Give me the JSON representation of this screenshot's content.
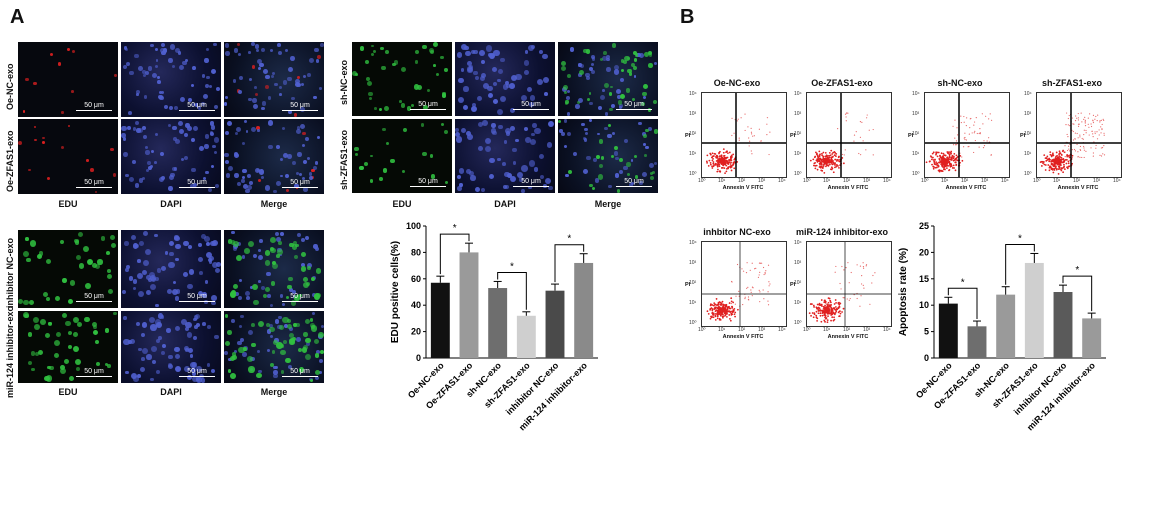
{
  "panel_labels": {
    "a": "A",
    "b": "B"
  },
  "micro": {
    "scale_bar": "50 μm",
    "columns": [
      "EDU",
      "DAPI",
      "Merge"
    ],
    "group1_rows": [
      "Oe-NC-exo",
      "Oe-ZFAS1-exo"
    ],
    "group2_rows": [
      "sh-NC-exo",
      "sh-ZFAS1-exo"
    ],
    "group3_rows": [
      "inhibitor NC-exo",
      "miR-124 inhibitor-exo"
    ]
  },
  "flow": {
    "xlabel": "Annexin V FITC",
    "ylabel": "PI",
    "ticks": [
      "10⁰",
      "10¹",
      "10²",
      "10³",
      "10⁴"
    ],
    "plots": [
      "Oe-NC-exo",
      "Oe-ZFAS1-exo",
      "sh-NC-exo",
      "sh-ZFAS1-exo",
      "inhbitor NC-exo",
      "miR-124 inhibitor-exo"
    ]
  },
  "colors": {
    "red_dots": "#e02020",
    "green_nuclei": "#30c040",
    "blue_nuclei": "#5060d0"
  },
  "chart_data": [
    {
      "type": "bar",
      "categories": [
        "Oe-NC-exo",
        "Oe-ZFAS1-exo",
        "sh-NC-exo",
        "sh-ZFAS1-exo",
        "inhibitor NC-exo",
        "miR-124 inhibitor-exo"
      ],
      "values": [
        57,
        80,
        53,
        32,
        51,
        72
      ],
      "errors": [
        5,
        7,
        5,
        3,
        5,
        7
      ],
      "bar_colors": [
        "#111111",
        "#9a9a9a",
        "#6e6e6e",
        "#cfcfcf",
        "#4a4a4a",
        "#8a8a8a"
      ],
      "ylabel": "EDU positive cells(%)",
      "ylim": [
        0,
        100
      ],
      "yticks": [
        "0",
        "20",
        "40",
        "60",
        "80",
        "100"
      ],
      "significance": [
        {
          "pair": [
            0,
            1
          ],
          "label": "*"
        },
        {
          "pair": [
            2,
            3
          ],
          "label": "*"
        },
        {
          "pair": [
            4,
            5
          ],
          "label": "*"
        }
      ]
    },
    {
      "type": "bar",
      "categories": [
        "Oe-NC-exo",
        "Oe-ZFAS1-exo",
        "sh-NC-exo",
        "sh-ZFAS1-exo",
        "inhibitor NC-exo",
        "miR-124 inhibitor-exo"
      ],
      "values": [
        10.3,
        6.0,
        12.0,
        18.0,
        12.5,
        7.5
      ],
      "errors": [
        1.2,
        1.0,
        1.5,
        1.8,
        1.3,
        1.0
      ],
      "bar_colors": [
        "#111111",
        "#6e6e6e",
        "#9a9a9a",
        "#cfcfcf",
        "#5a5a5a",
        "#9a9a9a"
      ],
      "ylabel": "Apoptosis rate (%)",
      "ylim": [
        0,
        25
      ],
      "yticks": [
        "0",
        "5",
        "10",
        "15",
        "20",
        "25"
      ],
      "significance": [
        {
          "pair": [
            0,
            1
          ],
          "label": "*"
        },
        {
          "pair": [
            2,
            3
          ],
          "label": "*"
        },
        {
          "pair": [
            4,
            5
          ],
          "label": "*"
        }
      ]
    }
  ]
}
